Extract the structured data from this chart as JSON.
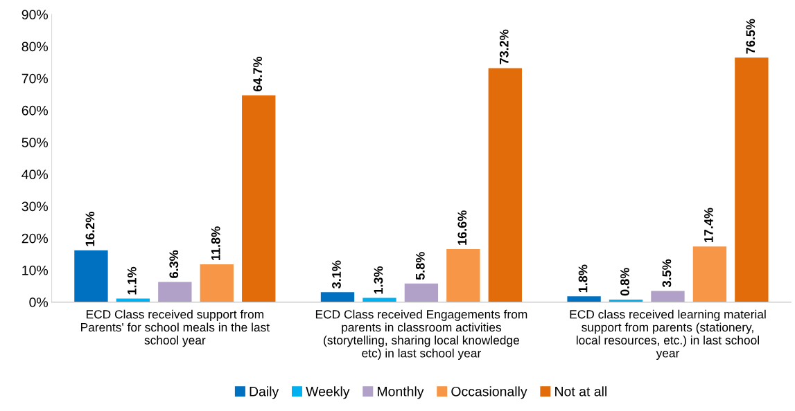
{
  "chart_data": {
    "type": "bar",
    "categories": [
      "ECD Class received support from Parents' for school meals in the last school year",
      "ECD Class received Engagements from parents in classroom activities (storytelling, sharing local knowledge etc) in last school year",
      "ECD class received learning material support from parents (stationery, local resources, etc.) in last school year"
    ],
    "series": [
      {
        "name": "Daily",
        "color": "#0070c0",
        "values": [
          16.2,
          3.1,
          1.8
        ],
        "value_labels": [
          "16.2%",
          "3.1%",
          "1.8%"
        ]
      },
      {
        "name": "Weekly",
        "color": "#00b0f0",
        "values": [
          1.1,
          1.3,
          0.8
        ],
        "value_labels": [
          "1.1%",
          "1.3%",
          "0.8%"
        ]
      },
      {
        "name": "Monthly",
        "color": "#b1a0c7",
        "values": [
          6.3,
          5.8,
          3.5
        ],
        "value_labels": [
          "6.3%",
          "5.8%",
          "3.5%"
        ]
      },
      {
        "name": "Occasionally",
        "color": "#f79646",
        "values": [
          11.8,
          16.6,
          17.4
        ],
        "value_labels": [
          "11.8%",
          "16.6%",
          "17.4%"
        ]
      },
      {
        "name": "Not at all",
        "color": "#e36c0a",
        "values": [
          64.7,
          73.2,
          76.5
        ],
        "value_labels": [
          "64.7%",
          "73.2%",
          "76.5%"
        ]
      }
    ],
    "ylim": [
      0,
      90
    ],
    "yticks": [
      {
        "value": 0,
        "label": "0%"
      },
      {
        "value": 10,
        "label": "10%"
      },
      {
        "value": 20,
        "label": "20%"
      },
      {
        "value": 30,
        "label": "30%"
      },
      {
        "value": 40,
        "label": "40%"
      },
      {
        "value": 50,
        "label": "50%"
      },
      {
        "value": 60,
        "label": "60%"
      },
      {
        "value": 70,
        "label": "70%"
      },
      {
        "value": 80,
        "label": "80%"
      },
      {
        "value": 90,
        "label": "90%"
      }
    ],
    "grid": false,
    "legend": "bottom"
  }
}
